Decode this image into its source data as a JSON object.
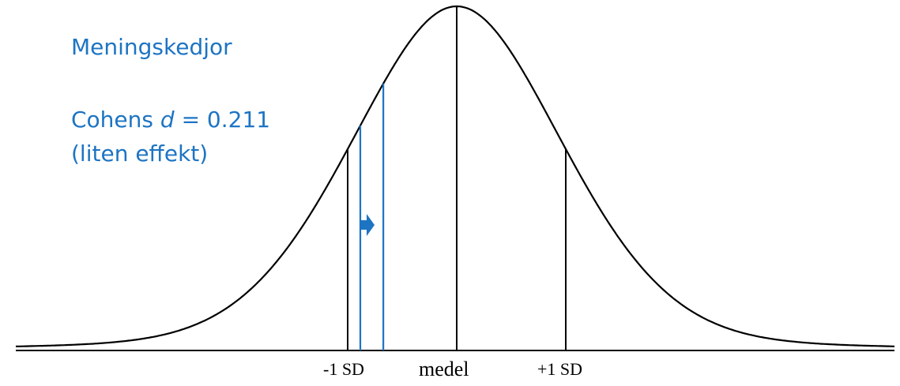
{
  "heading": "Meningskedjor",
  "effect": {
    "prefix": "Cohens ",
    "symbol": "d",
    "suffix": " = 0.211",
    "interpretation": "(liten effekt)"
  },
  "axis_labels": {
    "minus_sd": "-1 SD",
    "mean": "medel",
    "plus_sd": "+1 SD"
  },
  "chart_data": {
    "type": "area",
    "cohens_d": 0.211,
    "markers_sd": [
      -1,
      0,
      1
    ],
    "shift": {
      "from_sd": -1,
      "to_sd": -0.789
    },
    "colors": {
      "curve": "#000000",
      "accent": "#1d74c3"
    }
  }
}
